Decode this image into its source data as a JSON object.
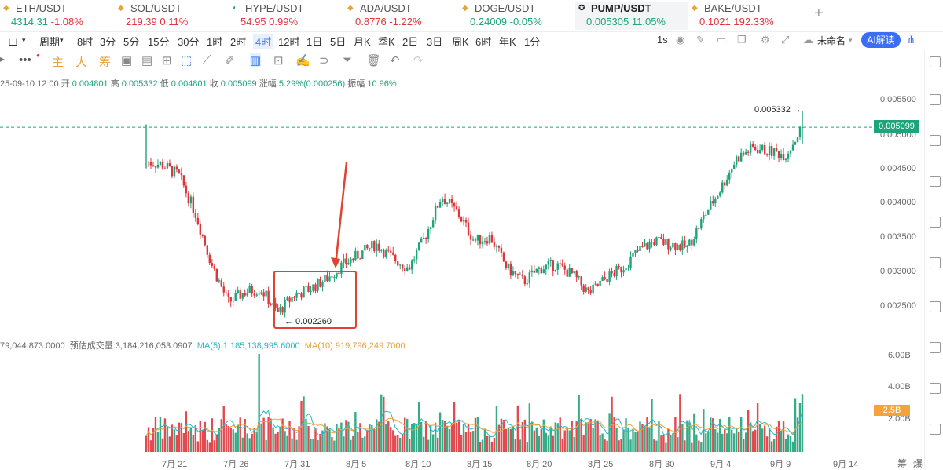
{
  "tabs": [
    {
      "symbol": "ETH/USDT",
      "price": "4314.31",
      "change": "-1.08%",
      "dir": "dn",
      "pdir": "up",
      "icon": "diamond-icon",
      "left": 0,
      "width": 150
    },
    {
      "symbol": "SOL/USDT",
      "price": "219.39",
      "change": "0.11%",
      "dir": "dn",
      "pdir": "dn",
      "icon": "diamond-icon",
      "left": 146,
      "width": 150
    },
    {
      "symbol": "HYPE/USDT",
      "price": "54.95",
      "change": "0.99%",
      "dir": "dn",
      "pdir": "dn",
      "icon": "hype-icon",
      "left": 292,
      "width": 150
    },
    {
      "symbol": "ADA/USDT",
      "price": "0.8776",
      "change": "-1.22%",
      "dir": "dn",
      "pdir": "dn",
      "icon": "diamond-icon",
      "left": 438,
      "width": 150
    },
    {
      "symbol": "DOGE/USDT",
      "price": "0.24009",
      "change": "-0.05%",
      "dir": "up",
      "pdir": "up",
      "icon": "diamond-icon",
      "left": 584,
      "width": 150
    },
    {
      "symbol": "PUMP/USDT",
      "price": "0.005305",
      "change": "11.05%",
      "dir": "up",
      "pdir": "up",
      "icon": "pump-icon",
      "left": 732,
      "width": 144,
      "active": true
    },
    {
      "symbol": "BAKE/USDT",
      "price": "0.1021",
      "change": "192.33%",
      "dir": "dn",
      "pdir": "dn",
      "icon": "diamond-icon",
      "left": 876,
      "width": 150
    }
  ],
  "toolbar": {
    "chart_type": "山",
    "period_label": "周期",
    "intervals": [
      "8时",
      "3分",
      "5分",
      "15分",
      "30分",
      "1时",
      "2时",
      "4时",
      "12时",
      "1日",
      "5日",
      "月K",
      "季K",
      "2日",
      "3日",
      "周K",
      "6时",
      "年K",
      "1分"
    ],
    "selected_interval": "4时",
    "refresh": "1s",
    "layout_name": "未命名",
    "ai_label": "AI解读"
  },
  "drawbar": {
    "zhu": "主",
    "da": "大",
    "chou": "筹"
  },
  "ohlc": {
    "date": "25-09-10 12:00",
    "open_label": "开",
    "open": "0.004801",
    "high_label": "高",
    "high": "0.005332",
    "low_label": "低",
    "low": "0.004801",
    "close_label": "收",
    "close": "0.005099",
    "chg_label": "涨幅",
    "chg": "5.29%(0.000256)",
    "amp_label": "振幅",
    "amp": "10.96%"
  },
  "volinfo": {
    "vol": "79,044,873.0000",
    "est_label": "预估成交量:",
    "est": "3,184,216,053.0907",
    "ma5_label": "MA(5):",
    "ma5": "1,185,138,995.6000",
    "ma10_label": "MA(10):",
    "ma10": "919,796,249.7000"
  },
  "price_axis": [
    "0.005500",
    "0.005000",
    "0.004500",
    "0.004000",
    "0.003500",
    "0.003000",
    "0.002500"
  ],
  "volume_axis": [
    "6.00B",
    "4.00B",
    "2.00B"
  ],
  "current_price": "0.005099",
  "vol_tag": "2.5B",
  "high_annot": "0.005332 →",
  "low_annot": "← 0.002260",
  "x_labels": [
    "7月 21",
    "7月 26",
    "7月 31",
    "8月 5",
    "8月 10",
    "8月 15",
    "8月 20",
    "8月 25",
    "8月 30",
    "9月 4",
    "9月 9",
    "9月 14"
  ],
  "corner_labels": {
    "a": "筹",
    "b": "爆"
  },
  "colors": {
    "up": "#1fa37a",
    "down": "#e0353b",
    "ma5": "#2db7c6",
    "ma10": "#f2a33a",
    "accent": "#3b6df5",
    "annotation": "#e0432f"
  },
  "chart_data": {
    "type": "candlestick",
    "title": "PUMP/USDT",
    "interval": "4时",
    "price_ylim": [
      0.0021,
      0.0056
    ],
    "volume_ylim": [
      0,
      6.5
    ],
    "current": 0.005099,
    "high": 0.005332,
    "low": 0.00226,
    "x": [
      "7月 21",
      "7月 26",
      "7月 31",
      "8月 5",
      "8月 10",
      "8月 15",
      "8月 20",
      "8月 25",
      "8月 30",
      "9月 4",
      "9月 9"
    ],
    "close_path": [
      0.0046,
      0.00455,
      0.0044,
      0.00385,
      0.0031,
      0.00255,
      0.0027,
      0.00275,
      0.0024,
      0.00265,
      0.00275,
      0.0029,
      0.0031,
      0.00325,
      0.0034,
      0.0032,
      0.00305,
      0.0035,
      0.0041,
      0.00385,
      0.00345,
      0.0035,
      0.00305,
      0.00285,
      0.00305,
      0.0031,
      0.00295,
      0.00268,
      0.0029,
      0.00305,
      0.0033,
      0.00345,
      0.0034,
      0.00335,
      0.0038,
      0.0042,
      0.00465,
      0.0048,
      0.00475,
      0.0047,
      0.0051
    ],
    "volume_typical_B": 1.5
  }
}
